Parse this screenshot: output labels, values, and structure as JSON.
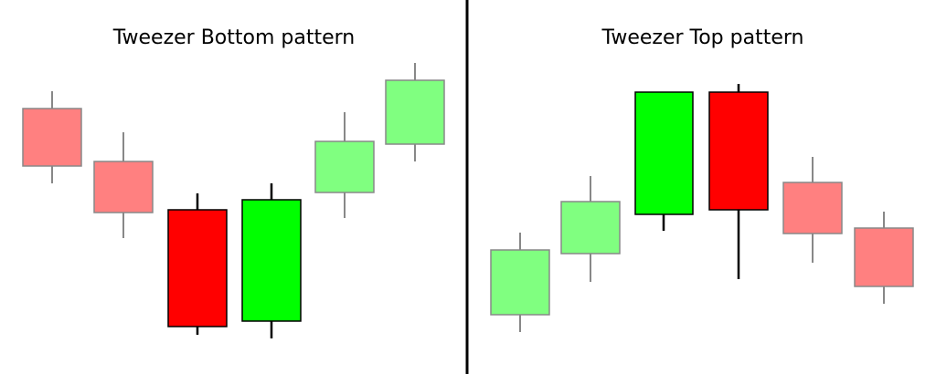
{
  "panels": [
    {
      "title": "Tweezer Bottom pattern"
    },
    {
      "title": "Tweezer Top pattern"
    }
  ]
}
